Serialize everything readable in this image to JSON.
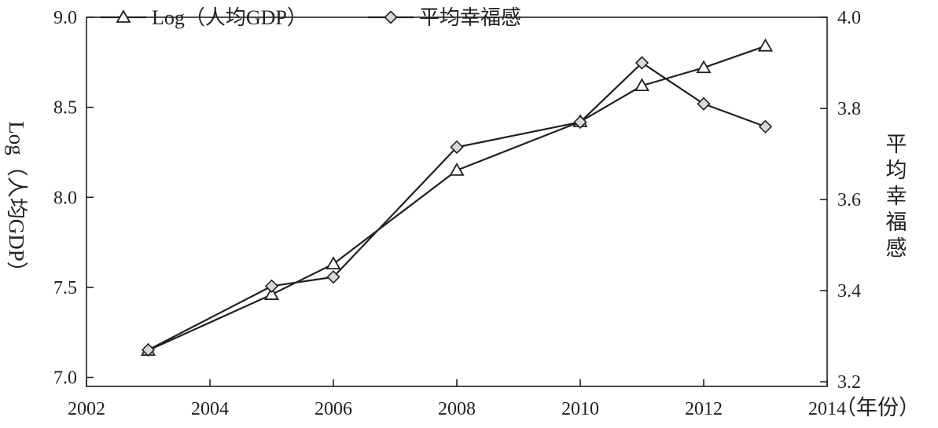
{
  "chart_data": {
    "type": "line",
    "legend": {
      "placement": "top-left",
      "entries": [
        "Log（人均GDP）",
        "平均幸福感"
      ]
    },
    "x": {
      "label": "（年份）",
      "range": [
        2002,
        2014
      ],
      "ticks": [
        2002,
        2004,
        2006,
        2008,
        2010,
        2012,
        2014
      ]
    },
    "y_left": {
      "label": "Log（人均GDP）",
      "range": [
        6.95,
        9.0
      ],
      "ticks": [
        "7.0",
        "7.5",
        "8.0",
        "8.5",
        "9.0"
      ]
    },
    "y_right": {
      "label": "平均幸福感",
      "range": [
        3.19,
        4.0
      ],
      "ticks": [
        "3.2",
        "3.4",
        "3.6",
        "3.8",
        "4.0"
      ]
    },
    "grid": false,
    "series": [
      {
        "name": "Log（人均GDP）",
        "axis": "left",
        "marker": "triangle",
        "x": [
          2003,
          2005,
          2006,
          2008,
          2010,
          2011,
          2012,
          2013
        ],
        "values": [
          7.15,
          7.46,
          7.63,
          8.15,
          8.42,
          8.62,
          8.72,
          8.84
        ]
      },
      {
        "name": "平均幸福感",
        "axis": "right",
        "marker": "diamond",
        "x": [
          2003,
          2005,
          2006,
          2008,
          2010,
          2011,
          2012,
          2013
        ],
        "values": [
          3.27,
          3.41,
          3.43,
          3.715,
          3.77,
          3.9,
          3.81,
          3.76
        ]
      }
    ],
    "colors": {
      "line": "#231f20",
      "marker_fill": "#d9d9d9",
      "background": "#ffffff"
    }
  }
}
